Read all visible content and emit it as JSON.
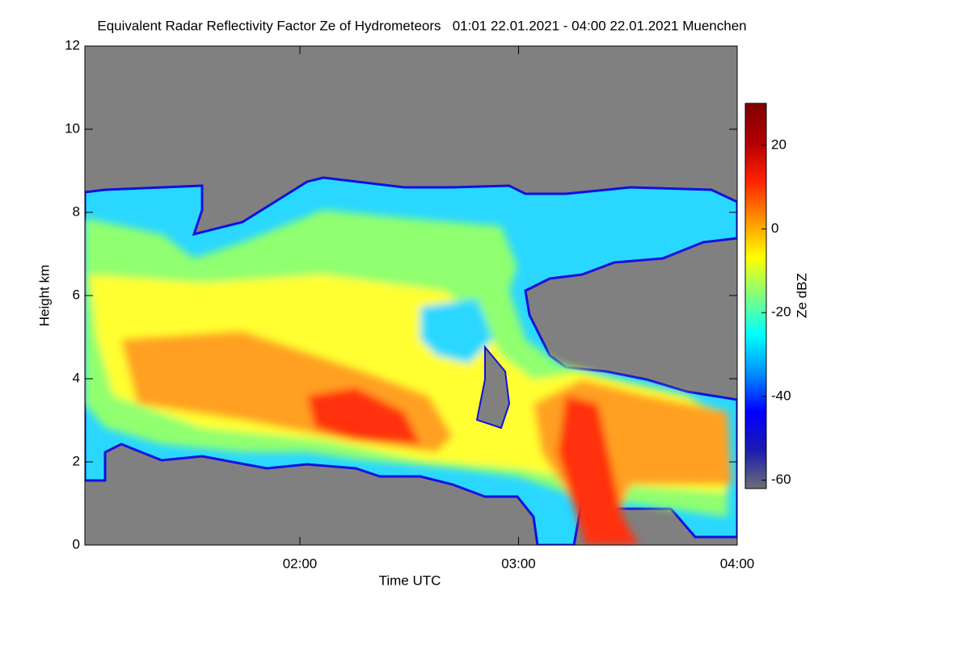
{
  "chart_data": {
    "type": "heatmap",
    "title": "Equivalent Radar Reflectivity Factor Ze of Hydrometeors   01:01 22.01.2021 - 04:00 22.01.2021 Muenchen",
    "xlabel": "Time UTC",
    "ylabel": "Height km",
    "xlim": [
      61,
      240
    ],
    "xticks": [
      {
        "value": 120,
        "label": "02:00"
      },
      {
        "value": 180,
        "label": "03:00"
      },
      {
        "value": 240,
        "label": "04:00"
      }
    ],
    "ylim": [
      0,
      12
    ],
    "yticks": [
      0,
      2,
      4,
      6,
      8,
      10,
      12
    ],
    "colorbar": {
      "label": "Ze dBZ",
      "lim": [
        -62,
        30
      ],
      "ticks": [
        -60,
        -40,
        -20,
        0,
        20
      ],
      "colors": [
        "#6e6e78",
        "#1a1ab0",
        "#0000ff",
        "#0090ff",
        "#00ffff",
        "#80ff80",
        "#ffff00",
        "#ff9000",
        "#ff2000",
        "#b00000",
        "#800000"
      ]
    }
  }
}
